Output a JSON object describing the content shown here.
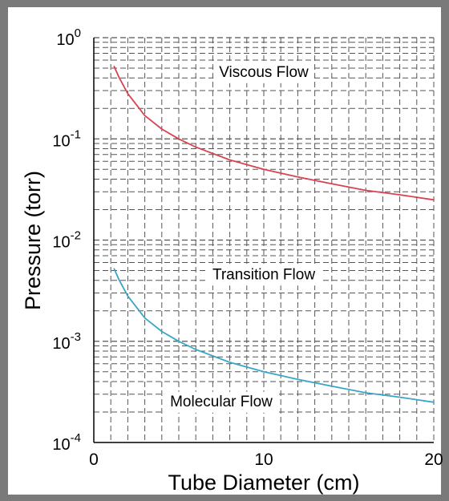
{
  "chart_data": {
    "type": "line",
    "title": "",
    "xlabel": "Tube Diameter (cm)",
    "ylabel": "Pressure (torr)",
    "xlim": [
      0,
      20
    ],
    "ylim": [
      0.0001,
      1
    ],
    "yscale": "log",
    "grid": true,
    "x_ticks": [
      {
        "value": 0,
        "label": "0"
      },
      {
        "value": 10,
        "label": "10"
      },
      {
        "value": 20,
        "label": "20"
      }
    ],
    "y_ticks": [
      {
        "value": 1,
        "base": "10",
        "exp": "0"
      },
      {
        "value": 0.1,
        "base": "10",
        "exp": "-1"
      },
      {
        "value": 0.01,
        "base": "10",
        "exp": "-2"
      },
      {
        "value": 0.001,
        "base": "10",
        "exp": "-3"
      },
      {
        "value": 0.0001,
        "base": "10",
        "exp": "-4"
      }
    ],
    "series": [
      {
        "color": "#d9434f",
        "x": [
          1.2,
          1.5,
          2,
          3,
          4,
          5,
          6,
          8,
          10,
          12,
          14,
          16,
          18,
          20
        ],
        "y": [
          0.52,
          0.4,
          0.28,
          0.17,
          0.125,
          0.1,
          0.083,
          0.062,
          0.05,
          0.042,
          0.036,
          0.031,
          0.028,
          0.025
        ]
      },
      {
        "color": "#3aa6c6",
        "x": [
          1.2,
          1.5,
          2,
          3,
          4,
          5,
          6,
          8,
          10,
          12,
          14,
          16,
          18,
          20
        ],
        "y": [
          0.0052,
          0.004,
          0.0028,
          0.0017,
          0.00125,
          0.001,
          0.00083,
          0.00062,
          0.0005,
          0.00042,
          0.00036,
          0.00031,
          0.00028,
          0.00025
        ]
      }
    ],
    "annotations": [
      {
        "text": "Viscous Flow",
        "x": 10,
        "y": 0.45
      },
      {
        "text": "Transition Flow",
        "x": 10,
        "y": 0.0045
      },
      {
        "text": "Molecular Flow",
        "x": 7.5,
        "y": 0.00025
      }
    ]
  },
  "colors": {
    "frame": "#7a7a7a",
    "grid": "#555555",
    "axis": "#000000"
  }
}
